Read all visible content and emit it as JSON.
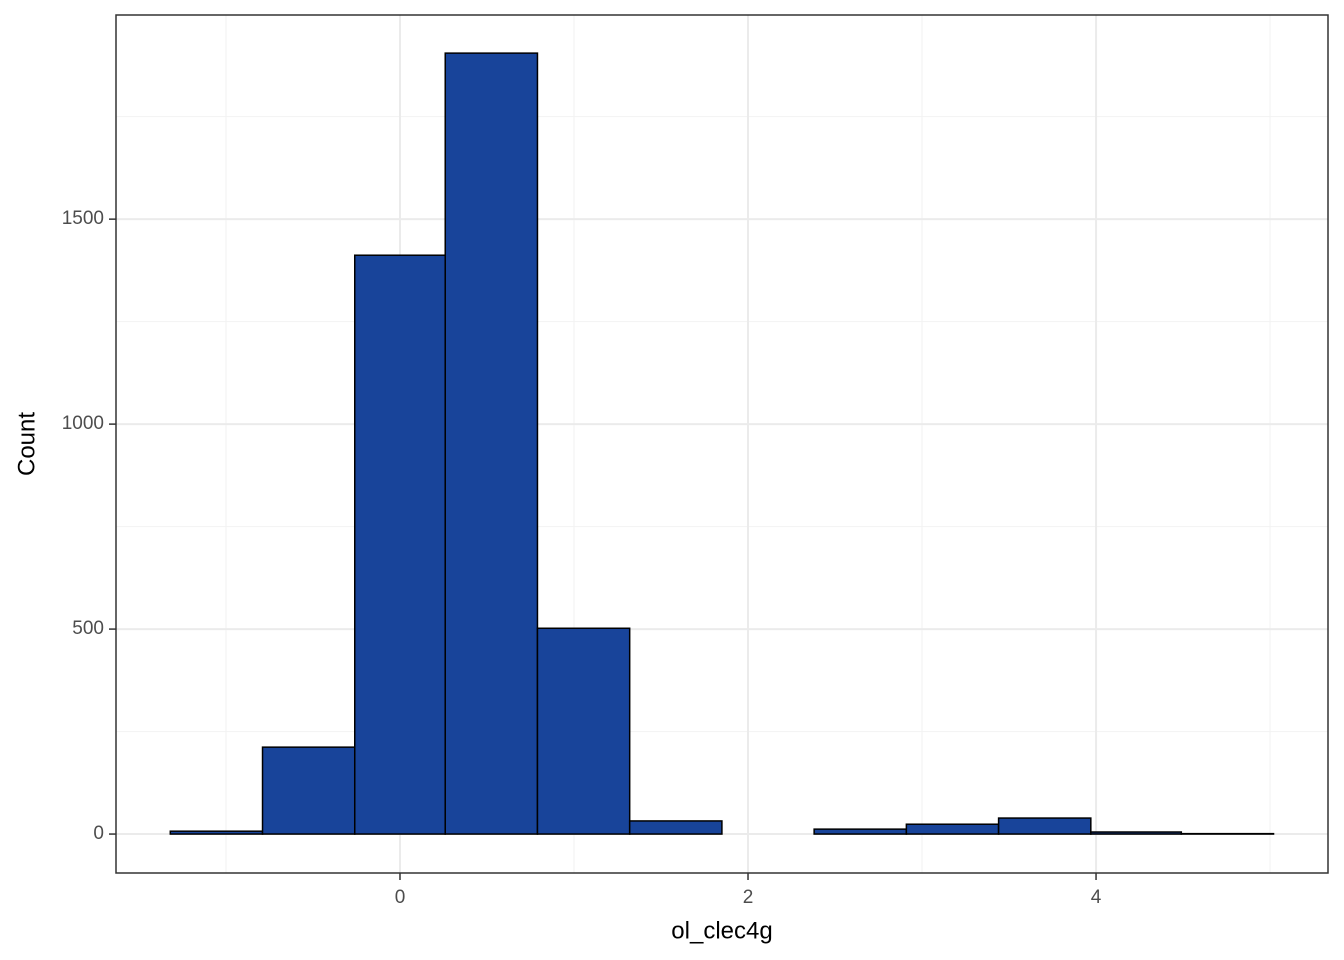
{
  "chart_data": {
    "type": "histogram",
    "x_label": "ol_clec4g",
    "y_label": "Count",
    "bins": [
      -1.32,
      -0.79,
      -0.26,
      0.26,
      0.79,
      1.32,
      1.85,
      2.38,
      2.91,
      3.44,
      3.97,
      4.49,
      5.02
    ],
    "values": [
      7,
      212,
      1412,
      1905,
      502,
      32,
      0,
      12,
      24,
      39,
      5,
      1
    ],
    "color": "#18449a",
    "edge_color": "#000000",
    "xlim": [
      -1.632,
      5.333
    ],
    "ylim": [
      -95,
      1998
    ],
    "xticks": [
      0,
      2,
      4
    ],
    "yticks": [
      0,
      500,
      1000,
      1500
    ],
    "x_minor_grid": [
      -1,
      1,
      3,
      5
    ],
    "y_minor_grid": [
      250,
      750,
      1250,
      1750
    ],
    "grid": true
  }
}
